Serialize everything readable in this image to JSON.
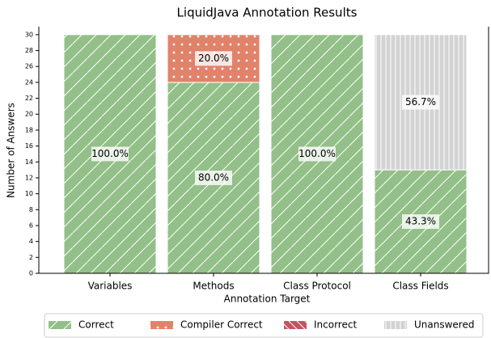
{
  "chart_data": {
    "type": "stacked_bar",
    "title": "LiquidJava Annotation Results",
    "xlabel": "Annotation Target",
    "ylabel": "Number of Answers",
    "categories": [
      "Variables",
      "Methods",
      "Class Protocol",
      "Class Fields"
    ],
    "series": [
      {
        "name": "Correct",
        "color": "#93bf88",
        "hatch": "/",
        "values": [
          30,
          24,
          30,
          13
        ],
        "value_labels": [
          "100.0%",
          "80.0%",
          "100.0%",
          "43.3%"
        ]
      },
      {
        "name": "Compiler Correct",
        "color": "#e2826b",
        "hatch": "o",
        "values": [
          0,
          6,
          0,
          0
        ],
        "value_labels": [
          null,
          "20.0%",
          null,
          null
        ]
      },
      {
        "name": "Incorrect",
        "color": "#c25560",
        "hatch": "\\",
        "values": [
          0,
          0,
          0,
          0
        ],
        "value_labels": [
          null,
          null,
          null,
          null
        ]
      },
      {
        "name": "Unanswered",
        "color": "#d3d3d3",
        "hatch": "|",
        "values": [
          0,
          0,
          0,
          17
        ],
        "value_labels": [
          null,
          null,
          null,
          "56.7%"
        ]
      }
    ],
    "ylim": [
      0,
      31
    ],
    "yticks": [
      0,
      2,
      4,
      6,
      8,
      10,
      12,
      14,
      16,
      18,
      20,
      22,
      24,
      26,
      28,
      30
    ],
    "legend": "bottom"
  }
}
